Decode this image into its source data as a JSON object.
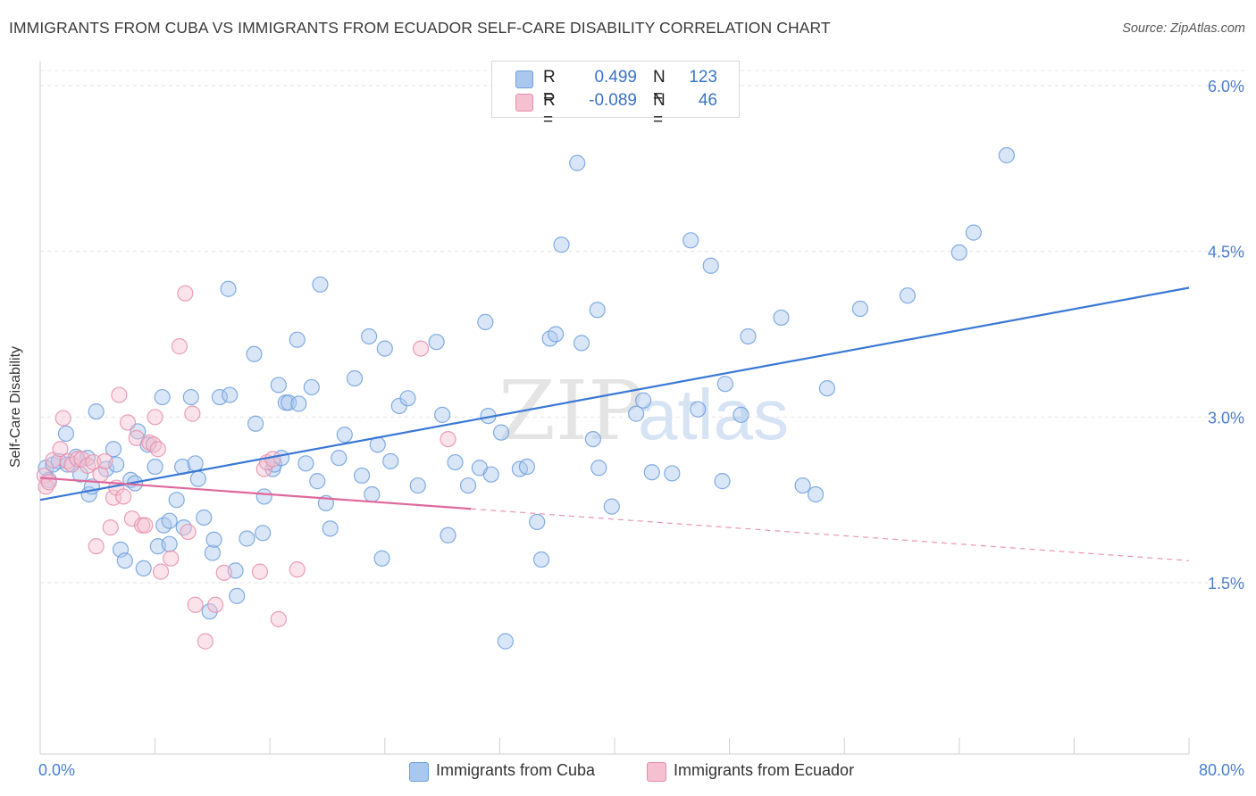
{
  "title": "IMMIGRANTS FROM CUBA VS IMMIGRANTS FROM ECUADOR SELF-CARE DISABILITY CORRELATION CHART",
  "source": "Source: ZipAtlas.com",
  "watermark": {
    "zip": "ZIP",
    "atlas": "atlas"
  },
  "stats": [
    {
      "r_label": "R =",
      "r_value": "0.499",
      "n_label": "N =",
      "n_value": "123",
      "color": "#aac8ee",
      "border": "#6f9fde"
    },
    {
      "r_label": "R =",
      "r_value": "-0.089",
      "n_label": "N =",
      "n_value": "46",
      "color": "#f5c0d0",
      "border": "#e58fab"
    }
  ],
  "chart_data": {
    "type": "scatter",
    "xlabel": "",
    "ylabel": "Self-Care Disability",
    "xlim": [
      0,
      80
    ],
    "ylim": [
      0,
      6.2
    ],
    "x_tick_labels": [
      {
        "value": 0,
        "label": "0.0%"
      },
      {
        "value": 80,
        "label": "80.0%"
      }
    ],
    "y_tick_labels": [
      {
        "value": 1.5,
        "label": "1.5%"
      },
      {
        "value": 3.0,
        "label": "3.0%"
      },
      {
        "value": 4.5,
        "label": "4.5%"
      },
      {
        "value": 6.0,
        "label": "6.0%"
      }
    ],
    "grid": true,
    "legend_position": "bottom-center",
    "series": [
      {
        "name": "Immigrants from Cuba",
        "color": "#6f9fde",
        "fill": "#aac8ee",
        "trend": {
          "x": [
            0,
            80
          ],
          "y": [
            2.25,
            4.17
          ],
          "dashed_from": null,
          "color": "#3a78d4"
        },
        "points": [
          [
            0.4,
            2.54
          ],
          [
            0.6,
            2.43
          ],
          [
            0.9,
            2.57
          ],
          [
            1.3,
            2.6
          ],
          [
            1.8,
            2.85
          ],
          [
            1.9,
            2.57
          ],
          [
            2.5,
            2.64
          ],
          [
            2.8,
            2.48
          ],
          [
            3.3,
            2.63
          ],
          [
            3.4,
            2.3
          ],
          [
            3.6,
            2.37
          ],
          [
            3.9,
            3.05
          ],
          [
            4.6,
            2.53
          ],
          [
            5.1,
            2.71
          ],
          [
            5.3,
            2.57
          ],
          [
            5.6,
            1.8
          ],
          [
            5.9,
            1.7
          ],
          [
            6.3,
            2.43
          ],
          [
            6.6,
            2.4
          ],
          [
            6.8,
            2.87
          ],
          [
            7.2,
            1.63
          ],
          [
            7.5,
            2.75
          ],
          [
            8.0,
            2.55
          ],
          [
            8.2,
            1.83
          ],
          [
            8.5,
            3.18
          ],
          [
            8.6,
            2.02
          ],
          [
            9.0,
            2.06
          ],
          [
            9.0,
            1.85
          ],
          [
            9.5,
            2.25
          ],
          [
            9.9,
            2.55
          ],
          [
            10.0,
            2.0
          ],
          [
            10.5,
            3.18
          ],
          [
            10.8,
            2.58
          ],
          [
            11.0,
            2.44
          ],
          [
            11.4,
            2.09
          ],
          [
            11.8,
            1.24
          ],
          [
            12.0,
            1.77
          ],
          [
            12.1,
            1.89
          ],
          [
            12.5,
            3.18
          ],
          [
            13.1,
            4.16
          ],
          [
            13.2,
            3.2
          ],
          [
            13.6,
            1.61
          ],
          [
            13.7,
            1.38
          ],
          [
            14.4,
            1.9
          ],
          [
            14.9,
            3.57
          ],
          [
            15.0,
            2.94
          ],
          [
            15.5,
            1.95
          ],
          [
            15.6,
            2.28
          ],
          [
            16.2,
            2.53
          ],
          [
            16.3,
            2.57
          ],
          [
            16.6,
            3.29
          ],
          [
            16.8,
            2.63
          ],
          [
            17.1,
            3.13
          ],
          [
            17.3,
            3.13
          ],
          [
            17.9,
            3.7
          ],
          [
            18.0,
            3.12
          ],
          [
            18.5,
            2.58
          ],
          [
            18.9,
            3.27
          ],
          [
            19.3,
            2.42
          ],
          [
            19.5,
            4.2
          ],
          [
            19.9,
            2.22
          ],
          [
            20.2,
            1.99
          ],
          [
            20.8,
            2.63
          ],
          [
            21.2,
            2.84
          ],
          [
            21.9,
            3.35
          ],
          [
            22.4,
            2.47
          ],
          [
            22.9,
            3.73
          ],
          [
            23.1,
            2.3
          ],
          [
            23.5,
            2.75
          ],
          [
            23.8,
            1.72
          ],
          [
            24.0,
            3.62
          ],
          [
            24.4,
            2.6
          ],
          [
            25.0,
            3.1
          ],
          [
            25.6,
            3.17
          ],
          [
            26.3,
            2.38
          ],
          [
            27.6,
            3.68
          ],
          [
            28.0,
            3.02
          ],
          [
            28.4,
            1.93
          ],
          [
            28.9,
            2.59
          ],
          [
            29.8,
            2.38
          ],
          [
            30.6,
            2.54
          ],
          [
            31.0,
            3.86
          ],
          [
            31.2,
            3.01
          ],
          [
            31.4,
            2.48
          ],
          [
            32.1,
            2.86
          ],
          [
            32.4,
            0.97
          ],
          [
            33.4,
            2.53
          ],
          [
            33.9,
            2.55
          ],
          [
            34.6,
            2.05
          ],
          [
            34.9,
            1.71
          ],
          [
            35.5,
            3.71
          ],
          [
            35.9,
            3.75
          ],
          [
            36.3,
            4.56
          ],
          [
            37.4,
            5.3
          ],
          [
            37.7,
            3.67
          ],
          [
            38.5,
            2.8
          ],
          [
            38.8,
            3.97
          ],
          [
            38.9,
            2.54
          ],
          [
            39.8,
            2.19
          ],
          [
            41.5,
            3.03
          ],
          [
            42.0,
            3.15
          ],
          [
            42.6,
            2.5
          ],
          [
            44.0,
            2.49
          ],
          [
            45.3,
            4.6
          ],
          [
            45.8,
            3.07
          ],
          [
            46.7,
            4.37
          ],
          [
            47.5,
            2.42
          ],
          [
            47.7,
            3.3
          ],
          [
            48.8,
            3.02
          ],
          [
            49.3,
            3.73
          ],
          [
            51.6,
            3.9
          ],
          [
            53.1,
            2.38
          ],
          [
            54.0,
            2.3
          ],
          [
            54.8,
            3.26
          ],
          [
            57.1,
            3.98
          ],
          [
            60.4,
            4.1
          ],
          [
            64.0,
            4.49
          ],
          [
            65.0,
            4.67
          ],
          [
            67.3,
            5.37
          ]
        ]
      },
      {
        "name": "Immigrants from Ecuador",
        "color": "#e58fab",
        "fill": "#f5c0d0",
        "trend": {
          "x": [
            0,
            80
          ],
          "y": [
            2.45,
            1.7
          ],
          "dashed_from": 30,
          "color": "#e0679a"
        },
        "points": [
          [
            0.3,
            2.47
          ],
          [
            0.4,
            2.37
          ],
          [
            0.6,
            2.41
          ],
          [
            0.9,
            2.61
          ],
          [
            1.4,
            2.71
          ],
          [
            1.6,
            2.99
          ],
          [
            1.9,
            2.6
          ],
          [
            2.2,
            2.57
          ],
          [
            2.6,
            2.62
          ],
          [
            2.9,
            2.62
          ],
          [
            3.3,
            2.56
          ],
          [
            3.7,
            2.59
          ],
          [
            3.9,
            1.83
          ],
          [
            4.2,
            2.48
          ],
          [
            4.5,
            2.6
          ],
          [
            4.9,
            2.0
          ],
          [
            5.1,
            2.27
          ],
          [
            5.3,
            2.36
          ],
          [
            5.5,
            3.2
          ],
          [
            5.8,
            2.28
          ],
          [
            6.1,
            2.95
          ],
          [
            6.4,
            2.08
          ],
          [
            6.7,
            2.81
          ],
          [
            7.1,
            2.02
          ],
          [
            7.3,
            2.02
          ],
          [
            7.6,
            2.77
          ],
          [
            7.9,
            2.75
          ],
          [
            8.0,
            3.0
          ],
          [
            8.2,
            2.71
          ],
          [
            8.4,
            1.6
          ],
          [
            9.1,
            1.72
          ],
          [
            9.7,
            3.64
          ],
          [
            10.1,
            4.12
          ],
          [
            10.3,
            1.96
          ],
          [
            10.6,
            3.03
          ],
          [
            10.8,
            1.3
          ],
          [
            11.5,
            0.97
          ],
          [
            12.2,
            1.3
          ],
          [
            12.8,
            1.59
          ],
          [
            15.3,
            1.6
          ],
          [
            15.6,
            2.53
          ],
          [
            15.8,
            2.59
          ],
          [
            16.2,
            2.62
          ],
          [
            16.6,
            1.17
          ],
          [
            17.9,
            1.62
          ],
          [
            26.5,
            3.62
          ],
          [
            28.4,
            2.8
          ]
        ]
      }
    ]
  }
}
